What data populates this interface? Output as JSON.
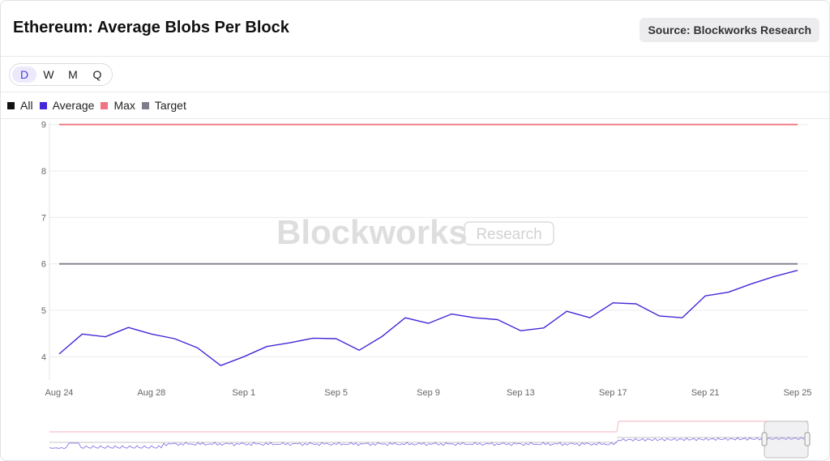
{
  "header": {
    "title": "Ethereum: Average Blobs Per Block",
    "source": "Source: Blockworks Research"
  },
  "timeframes": [
    "D",
    "W",
    "M",
    "Q"
  ],
  "active_timeframe": "D",
  "legend": [
    {
      "label": "All",
      "color": "#111111"
    },
    {
      "label": "Average",
      "color": "#4527d8"
    },
    {
      "label": "Max",
      "color": "#f07484"
    },
    {
      "label": "Target",
      "color": "#7f7d8c"
    }
  ],
  "watermark": {
    "brand": "Blockworks",
    "sub": "Research"
  },
  "chart_data": {
    "type": "line",
    "ylim": [
      3.5,
      9.1
    ],
    "y_ticks": [
      4,
      5,
      6,
      7,
      8,
      9
    ],
    "x_tick_labels": [
      "Aug 24",
      "Aug 28",
      "Sep 1",
      "Sep 5",
      "Sep 9",
      "Sep 13",
      "Sep 17",
      "Sep 21",
      "Sep 25"
    ],
    "x": [
      "Aug 24",
      "Aug 25",
      "Aug 26",
      "Aug 27",
      "Aug 28",
      "Aug 29",
      "Aug 30",
      "Aug 31",
      "Sep 1",
      "Sep 2",
      "Sep 3",
      "Sep 4",
      "Sep 5",
      "Sep 6",
      "Sep 7",
      "Sep 8",
      "Sep 9",
      "Sep 10",
      "Sep 11",
      "Sep 12",
      "Sep 13",
      "Sep 14",
      "Sep 15",
      "Sep 16",
      "Sep 17",
      "Sep 18",
      "Sep 19",
      "Sep 20",
      "Sep 21",
      "Sep 22",
      "Sep 23",
      "Sep 24",
      "Sep 25"
    ],
    "series": [
      {
        "name": "Average",
        "color": "#4527d8",
        "values": [
          4.06,
          4.49,
          4.43,
          4.63,
          4.49,
          4.39,
          4.19,
          3.81,
          4.0,
          4.22,
          4.3,
          4.4,
          4.39,
          4.14,
          4.44,
          4.84,
          4.72,
          4.92,
          4.84,
          4.8,
          4.56,
          4.62,
          4.98,
          4.84,
          5.16,
          5.14,
          4.88,
          4.84,
          5.31,
          5.39,
          5.57,
          5.73,
          5.86
        ]
      },
      {
        "name": "Max",
        "color": "#f07484",
        "values": [
          9,
          9,
          9,
          9,
          9,
          9,
          9,
          9,
          9,
          9,
          9,
          9,
          9,
          9,
          9,
          9,
          9,
          9,
          9,
          9,
          9,
          9,
          9,
          9,
          9,
          9,
          9,
          9,
          9,
          9,
          9,
          9,
          9
        ]
      },
      {
        "name": "Target",
        "color": "#7f7d8c",
        "values": [
          6,
          6,
          6,
          6,
          6,
          6,
          6,
          6,
          6,
          6,
          6,
          6,
          6,
          6,
          6,
          6,
          6,
          6,
          6,
          6,
          6,
          6,
          6,
          6,
          6,
          6,
          6,
          6,
          6,
          6,
          6,
          6,
          6
        ]
      }
    ],
    "grid": true,
    "legend_position": "top-left"
  }
}
